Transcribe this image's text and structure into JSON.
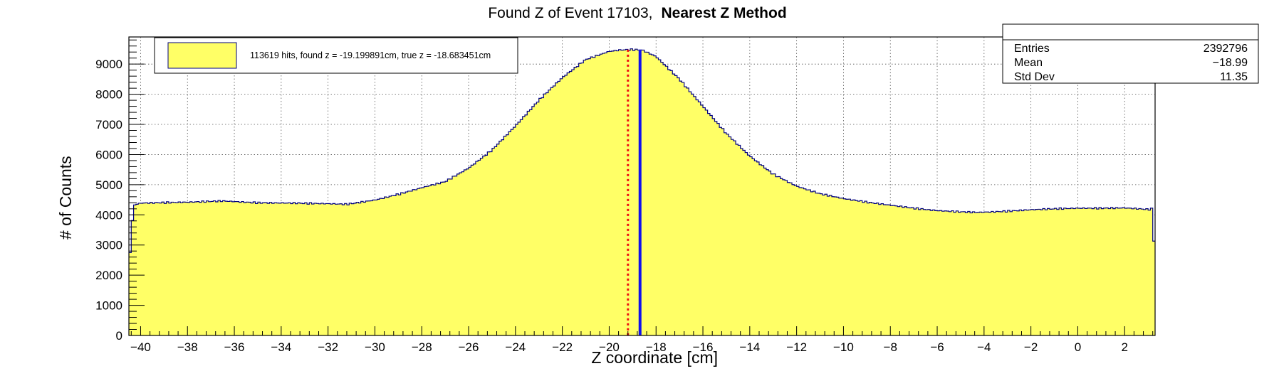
{
  "chart_data": {
    "type": "histogram",
    "title": "Found Z of Event 17103,",
    "title_bold": "Nearest Z Method",
    "xlabel": "Z coordinate [cm]",
    "ylabel": "# of Counts",
    "xlim": [
      -40.5,
      3.3
    ],
    "ylim": [
      0,
      9900
    ],
    "grid": true,
    "fill_color": "#ffff66",
    "line_color": "#000080",
    "xticks": [
      -40,
      -38,
      -36,
      -34,
      -32,
      -30,
      -28,
      -26,
      -24,
      -22,
      -20,
      -18,
      -16,
      -14,
      -12,
      -10,
      -8,
      -6,
      -4,
      -2,
      0,
      2
    ],
    "xtick_labels": [
      "−40",
      "−38",
      "−36",
      "−34",
      "−32",
      "−30",
      "−28",
      "−26",
      "−24",
      "−22",
      "−20",
      "−18",
      "−16",
      "−14",
      "−12",
      "−10",
      "−8",
      "−6",
      "−4",
      "−2",
      "0",
      "2"
    ],
    "yticks": [
      0,
      1000,
      2000,
      3000,
      4000,
      5000,
      6000,
      7000,
      8000,
      9000
    ],
    "ytick_labels": [
      "0",
      "1000",
      "2000",
      "3000",
      "4000",
      "5000",
      "6000",
      "7000",
      "8000",
      "9000"
    ],
    "profile": {
      "x": [
        -40.5,
        -40.3,
        -40.0,
        -38.0,
        -36.5,
        -35.0,
        -33.5,
        -32.0,
        -31.2,
        -30.0,
        -29.0,
        -28.0,
        -27.0,
        -26.0,
        -25.0,
        -24.0,
        -23.0,
        -22.0,
        -21.0,
        -20.0,
        -19.5,
        -19.0,
        -18.6,
        -18.0,
        -17.0,
        -16.0,
        -15.0,
        -14.0,
        -13.0,
        -12.0,
        -11.0,
        -10.0,
        -9.0,
        -8.0,
        -7.0,
        -6.0,
        -5.0,
        -4.3,
        -3.0,
        -2.0,
        -1.0,
        0.0,
        1.0,
        2.0,
        3.0,
        3.2,
        3.3
      ],
      "y": [
        2250,
        4320,
        4390,
        4420,
        4460,
        4400,
        4390,
        4370,
        4350,
        4490,
        4680,
        4900,
        5100,
        5550,
        6150,
        6950,
        7800,
        8550,
        9150,
        9420,
        9470,
        9480,
        9470,
        9250,
        8500,
        7600,
        6700,
        5950,
        5350,
        4950,
        4700,
        4540,
        4420,
        4320,
        4220,
        4140,
        4100,
        4080,
        4120,
        4170,
        4200,
        4220,
        4220,
        4230,
        4180,
        4200,
        2100
      ]
    },
    "markers": [
      {
        "x": -19.199891,
        "color": "#ee1111",
        "style": "dotted"
      },
      {
        "x": -18.683451,
        "color": "#1111ee",
        "style": "solid"
      }
    ],
    "legend": {
      "label": "113619 hits, found z = -19.199891cm, true z = -18.683451cm",
      "placement": "top-left"
    },
    "stats": {
      "placement": "top-right",
      "rows": [
        {
          "key": "Entries",
          "value": "2392796"
        },
        {
          "key": "Mean",
          "value": "−18.99"
        },
        {
          "key": "Std Dev",
          "value": "11.35"
        }
      ]
    }
  }
}
